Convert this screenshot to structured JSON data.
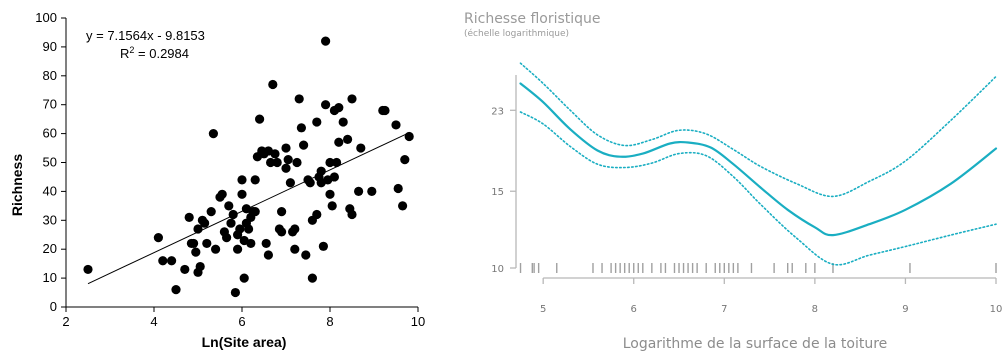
{
  "chart_data": [
    {
      "type": "scatter",
      "xlabel": "Ln(Site area)",
      "ylabel": "Richness",
      "xlim": [
        2,
        10
      ],
      "ylim": [
        0,
        100
      ],
      "xticks": [
        2,
        4,
        6,
        8,
        10
      ],
      "yticks": [
        0,
        10,
        20,
        30,
        40,
        50,
        60,
        70,
        80,
        90,
        100
      ],
      "equation": "y = 7.1564x - 9.8153",
      "r2_label": "R",
      "r2_sup": "2",
      "r2_value": " = 0.2984",
      "trendline": {
        "slope": 7.1564,
        "intercept": -9.8153,
        "x_range": [
          2.5,
          9.8
        ]
      },
      "points": [
        [
          2.5,
          13
        ],
        [
          4.1,
          24
        ],
        [
          4.2,
          16
        ],
        [
          4.4,
          16
        ],
        [
          4.5,
          6
        ],
        [
          4.7,
          13
        ],
        [
          4.8,
          31
        ],
        [
          4.85,
          22
        ],
        [
          4.9,
          22
        ],
        [
          4.95,
          19
        ],
        [
          5.0,
          27
        ],
        [
          5.0,
          12
        ],
        [
          5.05,
          14
        ],
        [
          5.1,
          30
        ],
        [
          5.15,
          29
        ],
        [
          5.2,
          22
        ],
        [
          5.3,
          33
        ],
        [
          5.35,
          60
        ],
        [
          5.5,
          38
        ],
        [
          5.55,
          39
        ],
        [
          5.6,
          26
        ],
        [
          5.65,
          24
        ],
        [
          5.7,
          35
        ],
        [
          5.75,
          29
        ],
        [
          5.8,
          32
        ],
        [
          5.85,
          5
        ],
        [
          5.9,
          20
        ],
        [
          5.95,
          27
        ],
        [
          6.0,
          44
        ],
        [
          6.0,
          39
        ],
        [
          6.05,
          23
        ],
        [
          6.05,
          10
        ],
        [
          6.1,
          34
        ],
        [
          6.1,
          29
        ],
        [
          6.15,
          27
        ],
        [
          6.2,
          31
        ],
        [
          6.2,
          22
        ],
        [
          6.25,
          33
        ],
        [
          6.3,
          33
        ],
        [
          6.35,
          52
        ],
        [
          6.4,
          65
        ],
        [
          6.45,
          54
        ],
        [
          6.5,
          53
        ],
        [
          6.55,
          22
        ],
        [
          6.6,
          18
        ],
        [
          6.65,
          50
        ],
        [
          6.7,
          77
        ],
        [
          6.75,
          53
        ],
        [
          6.8,
          50
        ],
        [
          6.85,
          27
        ],
        [
          6.9,
          33
        ],
        [
          6.9,
          26
        ],
        [
          7.0,
          48
        ],
        [
          7.05,
          51
        ],
        [
          7.1,
          43
        ],
        [
          7.15,
          26
        ],
        [
          7.2,
          20
        ],
        [
          7.2,
          27
        ],
        [
          7.25,
          50
        ],
        [
          7.3,
          72
        ],
        [
          7.35,
          62
        ],
        [
          7.4,
          56
        ],
        [
          7.45,
          18
        ],
        [
          7.5,
          44
        ],
        [
          7.55,
          43
        ],
        [
          7.6,
          30
        ],
        [
          7.6,
          10
        ],
        [
          7.7,
          64
        ],
        [
          7.75,
          45
        ],
        [
          7.8,
          47
        ],
        [
          7.8,
          43
        ],
        [
          7.85,
          21
        ],
        [
          7.9,
          70
        ],
        [
          7.9,
          92
        ],
        [
          7.95,
          44
        ],
        [
          8.0,
          50
        ],
        [
          8.0,
          39
        ],
        [
          8.05,
          35
        ],
        [
          8.1,
          68
        ],
        [
          8.15,
          50
        ],
        [
          8.2,
          57
        ],
        [
          8.2,
          69
        ],
        [
          8.3,
          64
        ],
        [
          8.4,
          58
        ],
        [
          8.45,
          34
        ],
        [
          8.5,
          32
        ],
        [
          8.5,
          72
        ],
        [
          8.65,
          40
        ],
        [
          8.7,
          55
        ],
        [
          8.95,
          40
        ],
        [
          9.2,
          68
        ],
        [
          9.25,
          68
        ],
        [
          9.5,
          63
        ],
        [
          9.55,
          41
        ],
        [
          9.65,
          35
        ],
        [
          9.7,
          51
        ],
        [
          9.8,
          59
        ],
        [
          7.0,
          55
        ],
        [
          6.3,
          44
        ],
        [
          5.9,
          25
        ],
        [
          7.7,
          32
        ],
        [
          6.6,
          54
        ],
        [
          8.1,
          45
        ],
        [
          5.4,
          20
        ]
      ]
    },
    {
      "type": "line",
      "title": "Richesse floristique",
      "subtitle": "(échelle logarithmique)",
      "xlabel": "Logarithme de la surface de la toiture",
      "xlim": [
        4.7,
        10
      ],
      "xticks": [
        5,
        6,
        7,
        8,
        9,
        10
      ],
      "ylim": [
        10,
        30
      ],
      "yticks": [
        10,
        15,
        23
      ],
      "log_scale_y": true,
      "colors": {
        "fit": "#1aaec2",
        "ci": "#1aaec2",
        "rug": "#a0a0a0",
        "axis": "#b8b8b8"
      },
      "series": [
        {
          "role": "fit",
          "x": [
            4.75,
            5.0,
            5.3,
            5.6,
            5.85,
            6.1,
            6.4,
            6.6,
            6.85,
            7.1,
            7.4,
            7.7,
            8.0,
            8.2,
            8.6,
            9.0,
            9.5,
            10.0
          ],
          "y": [
            26.5,
            24.0,
            20.8,
            18.6,
            18.0,
            18.3,
            19.3,
            19.4,
            18.9,
            17.3,
            15.3,
            13.6,
            12.4,
            11.9,
            12.6,
            13.6,
            15.6,
            18.8
          ]
        },
        {
          "role": "ci_upper",
          "x": [
            4.75,
            5.0,
            5.3,
            5.6,
            5.9,
            6.2,
            6.5,
            6.8,
            7.1,
            7.4,
            7.8,
            8.2,
            8.6,
            9.0,
            9.5,
            10.0
          ],
          "y": [
            29.5,
            26.5,
            23.0,
            20.2,
            19.1,
            19.7,
            20.7,
            20.3,
            18.7,
            17.1,
            15.6,
            14.6,
            15.8,
            17.6,
            21.8,
            27.5
          ]
        },
        {
          "role": "ci_lower",
          "x": [
            4.75,
            5.0,
            5.3,
            5.6,
            5.9,
            6.2,
            6.5,
            6.8,
            7.1,
            7.4,
            7.8,
            8.2,
            8.6,
            9.0,
            9.5,
            10.0
          ],
          "y": [
            22.8,
            21.4,
            19.0,
            17.3,
            17.0,
            17.4,
            18.3,
            18.1,
            16.2,
            14.0,
            11.7,
            10.2,
            10.7,
            11.2,
            11.9,
            12.6
          ]
        }
      ],
      "rug": [
        4.75,
        4.88,
        4.9,
        4.95,
        5.15,
        5.55,
        5.65,
        5.75,
        5.8,
        5.85,
        5.9,
        5.95,
        6.0,
        6.05,
        6.1,
        6.2,
        6.3,
        6.35,
        6.45,
        6.5,
        6.55,
        6.6,
        6.65,
        6.7,
        6.8,
        6.9,
        6.95,
        7.0,
        7.05,
        7.1,
        7.15,
        7.3,
        7.55,
        7.7,
        7.75,
        7.9,
        8.0,
        8.2,
        9.05,
        10.0
      ]
    }
  ]
}
